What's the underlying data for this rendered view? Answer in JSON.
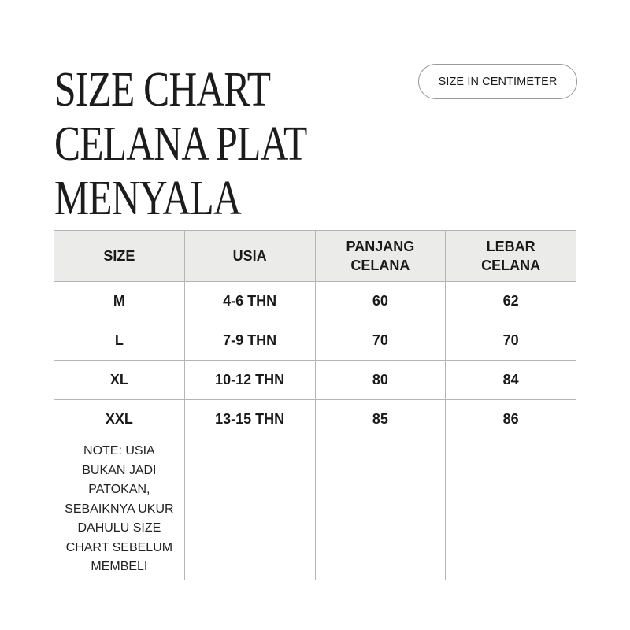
{
  "title": {
    "lines": [
      "SIZE CHART",
      "CELANA PLAT",
      "MENYALA"
    ]
  },
  "unit_badge": "SIZE IN CENTIMETER",
  "table": {
    "header_lines": [
      [
        "SIZE"
      ],
      [
        "USIA"
      ],
      [
        "PANJANG",
        "CELANA"
      ],
      [
        "LEBAR",
        "CELANA"
      ]
    ],
    "rows": [
      [
        "M",
        "4-6 THN",
        "60",
        "62"
      ],
      [
        "L",
        "7-9 THN",
        "70",
        "70"
      ],
      [
        "XL",
        "10-12 THN",
        "80",
        "84"
      ],
      [
        "XXL",
        "13-15 THN",
        "85",
        "86"
      ]
    ],
    "note_lines": [
      "NOTE: USIA",
      "BUKAN JADI",
      "PATOKAN,",
      "SEBAIKNYA UKUR",
      "DAHULU SIZE",
      "CHART SEBELUM",
      "MEMBELI"
    ]
  },
  "colors": {
    "header_bg": "#ebebea",
    "border": "#b5b5b5",
    "text": "#1a1a1a"
  }
}
